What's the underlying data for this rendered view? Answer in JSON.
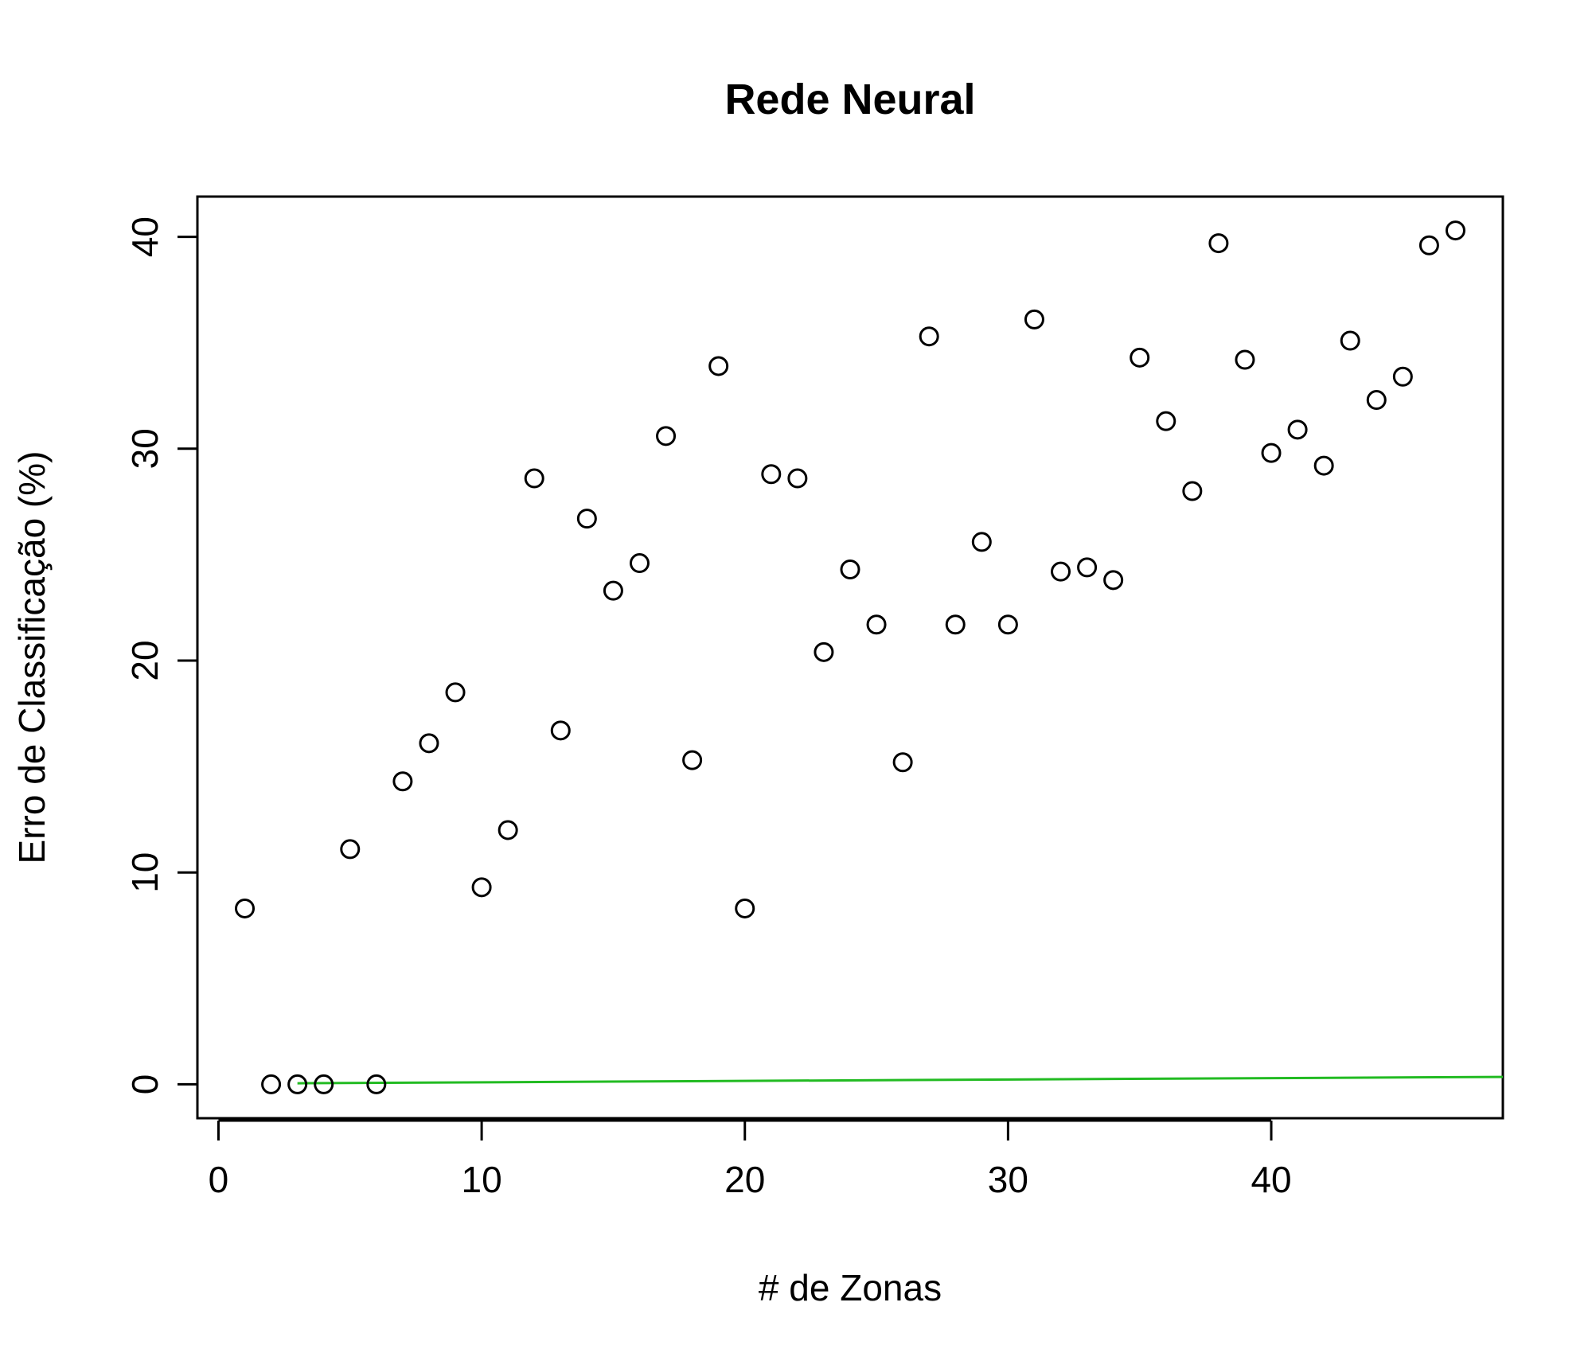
{
  "chart_data": {
    "type": "scatter",
    "title": "Rede Neural",
    "xlabel": "# de Zonas",
    "ylabel": "Erro de Classificação (%)",
    "xlim": [
      -0.8,
      48.8
    ],
    "ylim": [
      -1.6,
      41.9
    ],
    "xticks": [
      0,
      10,
      20,
      30,
      40
    ],
    "yticks": [
      0,
      10,
      20,
      30,
      40
    ],
    "grid": false,
    "points": {
      "x": [
        1,
        2,
        3,
        4,
        5,
        6,
        7,
        8,
        9,
        10,
        11,
        12,
        13,
        14,
        15,
        16,
        17,
        18,
        19,
        20,
        21,
        22,
        23,
        24,
        25,
        26,
        27,
        28,
        29,
        30,
        31,
        32,
        33,
        34,
        35,
        36,
        37,
        38,
        39,
        40,
        41,
        42,
        43,
        44,
        45,
        46,
        47
      ],
      "y": [
        8.3,
        0,
        0,
        0,
        11.1,
        0,
        14.3,
        16.1,
        18.5,
        9.3,
        12.0,
        28.6,
        16.7,
        26.7,
        23.3,
        24.6,
        30.6,
        15.3,
        33.9,
        8.3,
        28.8,
        28.6,
        20.4,
        24.3,
        21.7,
        15.2,
        35.3,
        21.7,
        25.6,
        21.7,
        36.1,
        24.2,
        24.4,
        23.8,
        34.3,
        31.3,
        28.0,
        39.7,
        34.2,
        29.8,
        30.9,
        29.2,
        35.1,
        32.3,
        33.4,
        39.6,
        40.3
      ],
      "color": "#000000"
    },
    "line": {
      "x": [
        3,
        48.8
      ],
      "y": [
        0.05,
        0.35
      ],
      "color": "#22bb22"
    }
  }
}
